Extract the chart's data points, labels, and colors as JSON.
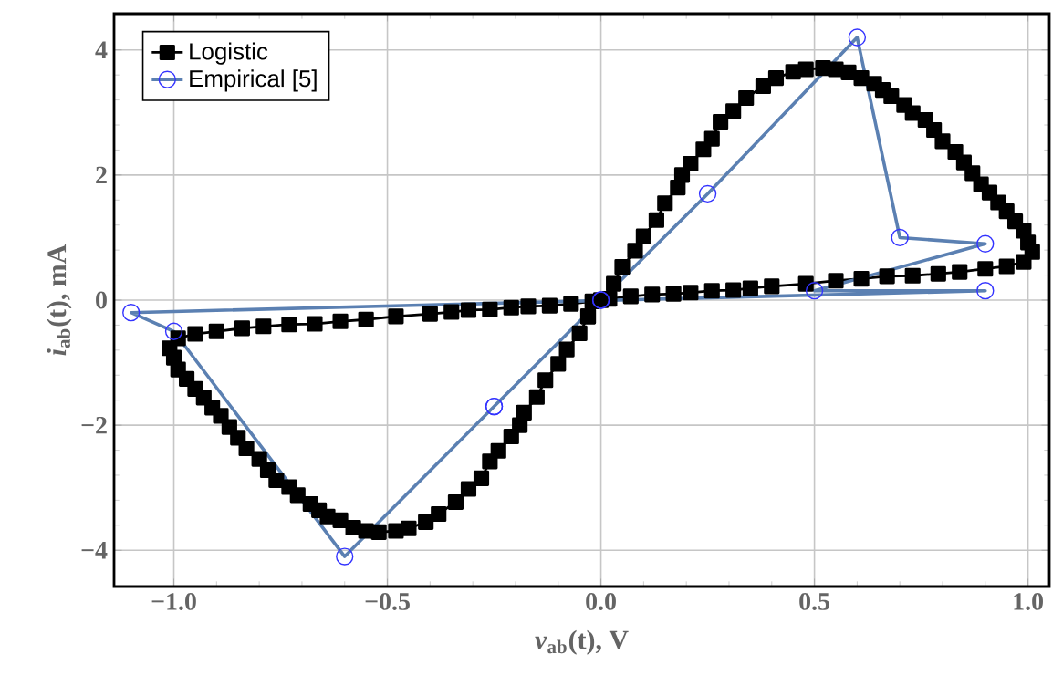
{
  "chart_data": {
    "type": "line",
    "xlabel": "*v*$_{ab}$(t), V",
    "ylabel": "*i*$_{ab}$(t), mA",
    "xlim": [
      -1.14,
      1.05
    ],
    "ylim": [
      -4.58,
      4.58
    ],
    "xticks": [
      {
        "value": -1.0,
        "label": "−1.0"
      },
      {
        "value": -0.5,
        "label": "−0.5"
      },
      {
        "value": 0.0,
        "label": "0.0"
      },
      {
        "value": 0.5,
        "label": "0.5"
      },
      {
        "value": 1.0,
        "label": "1.0"
      }
    ],
    "yticks": [
      {
        "value": -4,
        "label": "−4"
      },
      {
        "value": -2,
        "label": "−2"
      },
      0,
      2,
      4
    ],
    "grid": true,
    "legend": "top left",
    "series": [
      {
        "name": "Logistic",
        "color": "#000000",
        "marker": "square",
        "x": [
          -0.03,
          0.0,
          0.03,
          0.05,
          0.08,
          0.1,
          0.13,
          0.15,
          0.18,
          0.19,
          0.21,
          0.24,
          0.26,
          0.28,
          0.31,
          0.34,
          0.38,
          0.41,
          0.45,
          0.48,
          0.52,
          0.55,
          0.58,
          0.61,
          0.64,
          0.66,
          0.68,
          0.71,
          0.73,
          0.76,
          0.78,
          0.8,
          0.83,
          0.85,
          0.87,
          0.89,
          0.91,
          0.93,
          0.95,
          0.97,
          0.99,
          1.0,
          1.01,
          0.99,
          0.95,
          0.9,
          0.84,
          0.79,
          0.73,
          0.67,
          0.61,
          0.55,
          0.48,
          0.4,
          0.35,
          0.31,
          0.26,
          0.21,
          0.17,
          0.12,
          0.07,
          0.02,
          -0.02,
          -0.07,
          -0.12,
          -0.17,
          -0.21,
          -0.26,
          -0.31,
          -0.35,
          -0.4,
          -0.48,
          -0.55,
          -0.61,
          -0.67,
          -0.73,
          -0.79,
          -0.84,
          -0.9,
          -0.95,
          -0.99,
          -1.01,
          -1.0,
          -0.99,
          -0.97,
          -0.95,
          -0.93,
          -0.91,
          -0.89,
          -0.87,
          -0.85,
          -0.83,
          -0.8,
          -0.78,
          -0.76,
          -0.73,
          -0.71,
          -0.68,
          -0.66,
          -0.64,
          -0.61,
          -0.58,
          -0.55,
          -0.52,
          -0.48,
          -0.45,
          -0.41,
          -0.38,
          -0.34,
          -0.31,
          -0.28,
          -0.26,
          -0.24,
          -0.21,
          -0.19,
          -0.18,
          -0.15,
          -0.13,
          -0.1,
          -0.08,
          -0.05,
          -0.03,
          0.0
        ],
        "values": [
          -0.26,
          0.0,
          0.26,
          0.53,
          0.79,
          1.02,
          1.28,
          1.55,
          1.8,
          2.0,
          2.18,
          2.41,
          2.58,
          2.85,
          3.02,
          3.23,
          3.42,
          3.55,
          3.65,
          3.69,
          3.71,
          3.69,
          3.64,
          3.55,
          3.46,
          3.36,
          3.26,
          3.12,
          2.99,
          2.88,
          2.72,
          2.54,
          2.37,
          2.2,
          2.03,
          1.85,
          1.72,
          1.56,
          1.42,
          1.26,
          1.11,
          0.92,
          0.77,
          0.61,
          0.54,
          0.5,
          0.45,
          0.42,
          0.39,
          0.38,
          0.34,
          0.31,
          0.26,
          0.22,
          0.19,
          0.16,
          0.15,
          0.12,
          0.1,
          0.09,
          0.06,
          0.02,
          -0.02,
          -0.06,
          -0.09,
          -0.1,
          -0.12,
          -0.15,
          -0.16,
          -0.19,
          -0.22,
          -0.26,
          -0.31,
          -0.34,
          -0.38,
          -0.39,
          -0.42,
          -0.45,
          -0.5,
          -0.54,
          -0.61,
          -0.77,
          -0.92,
          -1.11,
          -1.26,
          -1.42,
          -1.56,
          -1.72,
          -1.85,
          -2.03,
          -2.2,
          -2.37,
          -2.54,
          -2.72,
          -2.88,
          -2.99,
          -3.12,
          -3.26,
          -3.36,
          -3.46,
          -3.52,
          -3.64,
          -3.69,
          -3.71,
          -3.69,
          -3.65,
          -3.55,
          -3.42,
          -3.23,
          -3.02,
          -2.85,
          -2.58,
          -2.41,
          -2.18,
          -2.0,
          -1.8,
          -1.55,
          -1.28,
          -1.02,
          -0.79,
          -0.53,
          -0.26,
          0.0
        ]
      },
      {
        "name": "Empirical [5]",
        "color": "#5b80b2",
        "marker": "circle",
        "x": [
          -0.25,
          0.0,
          0.25,
          0.6,
          0.7,
          0.9,
          0.5,
          0.9,
          -1.1,
          -1.0,
          -0.6,
          -0.25,
          0.0
        ],
        "values": [
          -1.7,
          0.0,
          1.7,
          4.2,
          1.0,
          0.9,
          0.15,
          0.15,
          -0.2,
          -0.5,
          -4.1,
          -1.7,
          0.0
        ]
      }
    ]
  }
}
